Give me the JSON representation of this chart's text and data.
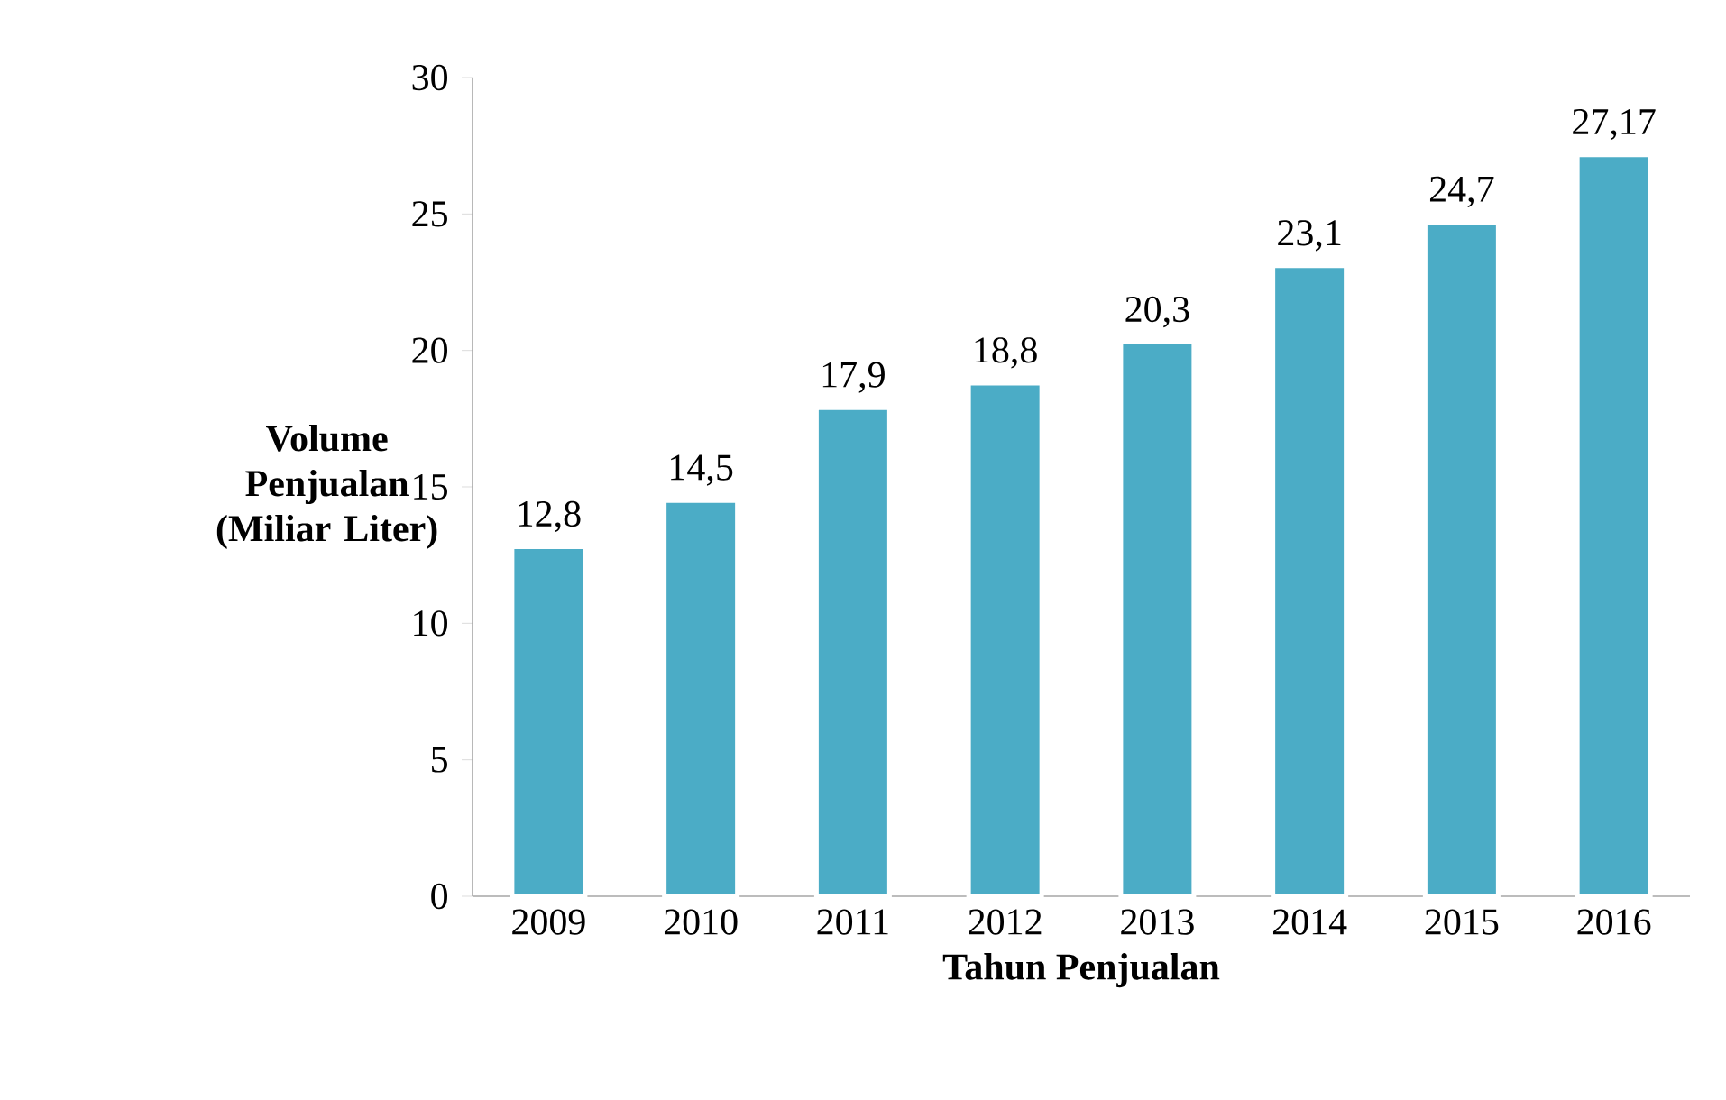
{
  "chart_data": {
    "type": "bar",
    "xlabel": "Tahun Penjualan",
    "ylabel": "Volume Penjualan (Miliar Liter)",
    "categories": [
      "2009",
      "2010",
      "2011",
      "2012",
      "2013",
      "2014",
      "2015",
      "2016"
    ],
    "values": [
      12.8,
      14.5,
      17.9,
      18.8,
      20.3,
      23.1,
      24.7,
      27.17
    ],
    "value_labels": [
      "12,8",
      "14,5",
      "17,9",
      "18,8",
      "20,3",
      "23,1",
      "24,7",
      "27,17"
    ],
    "color": "#4bacc6",
    "ylim": [
      0,
      30
    ],
    "yticks": [
      0,
      5,
      10,
      15,
      20,
      25,
      30
    ]
  }
}
